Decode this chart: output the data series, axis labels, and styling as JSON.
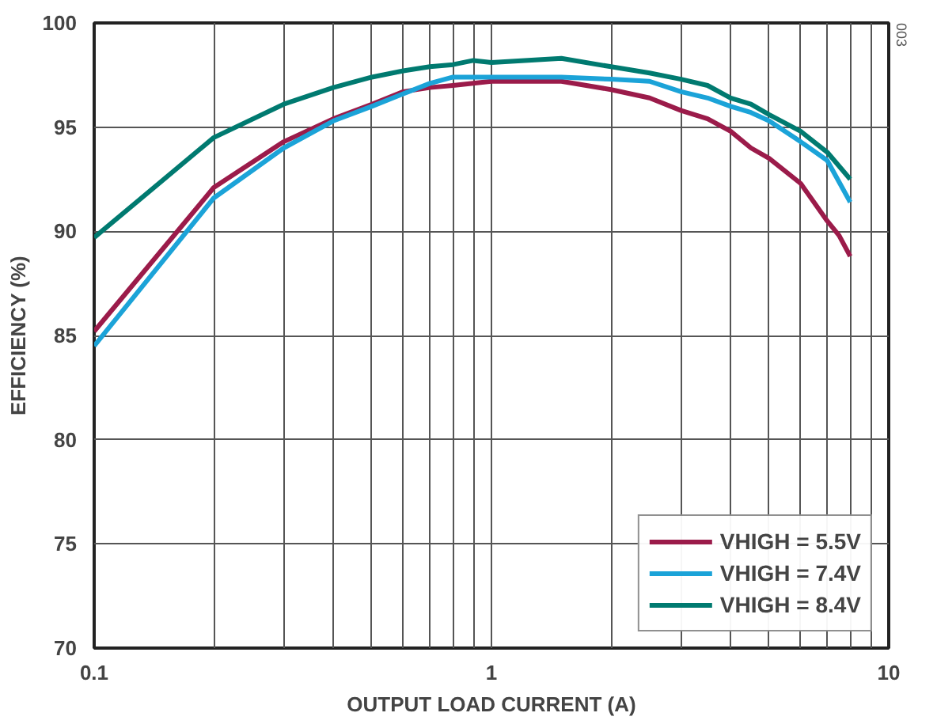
{
  "chart_data": {
    "type": "line",
    "xlabel": "OUTPUT LOAD CURRENT (A)",
    "ylabel": "EFFICIENCY (%)",
    "log": "x",
    "xlim": [
      0.1,
      10
    ],
    "ylim": [
      70,
      100
    ],
    "xticks": [
      0.1,
      {
        "value": 0.2,
        "label": null
      },
      {
        "value": 0.3,
        "label": null
      },
      {
        "value": 0.4,
        "label": null
      },
      {
        "value": 0.5,
        "label": null
      },
      {
        "value": 0.6,
        "label": null
      },
      {
        "value": 0.7,
        "label": null
      },
      {
        "value": 0.8,
        "label": null
      },
      {
        "value": 0.9,
        "label": null
      },
      1,
      {
        "value": 2,
        "label": null
      },
      {
        "value": 3,
        "label": null
      },
      {
        "value": 4,
        "label": null
      },
      {
        "value": 5,
        "label": null
      },
      {
        "value": 6,
        "label": null
      },
      {
        "value": 7,
        "label": null
      },
      {
        "value": 8,
        "label": null
      },
      {
        "value": 9,
        "label": null
      },
      10
    ],
    "yticks": [
      70,
      75,
      80,
      85,
      90,
      95,
      100
    ],
    "grid": true,
    "legend": "bottom right",
    "line_style": "solid",
    "annotations": [
      "003"
    ],
    "series": [
      {
        "name": "VHIGH = 5.5V",
        "color": "#9b1b4a",
        "x": [
          0.1,
          0.2,
          0.3,
          0.4,
          0.5,
          0.6,
          0.7,
          0.8,
          1.0,
          1.5,
          2,
          2.5,
          3,
          3.5,
          4,
          4.5,
          5,
          6,
          7,
          7.5,
          8
        ],
        "values": [
          85.2,
          92.1,
          94.3,
          95.4,
          96.1,
          96.7,
          96.9,
          97.0,
          97.2,
          97.2,
          96.8,
          96.4,
          95.8,
          95.4,
          94.8,
          94.0,
          93.5,
          92.3,
          90.5,
          89.8,
          88.8
        ]
      },
      {
        "name": "VHIGH = 7.4V",
        "color": "#1ba3d8",
        "x": [
          0.1,
          0.2,
          0.3,
          0.4,
          0.5,
          0.6,
          0.7,
          0.8,
          1.0,
          1.5,
          2,
          2.5,
          3,
          3.5,
          4,
          4.5,
          5,
          6,
          7,
          8
        ],
        "values": [
          84.5,
          91.6,
          94.0,
          95.3,
          96.0,
          96.6,
          97.1,
          97.4,
          97.4,
          97.4,
          97.3,
          97.2,
          96.7,
          96.4,
          96.0,
          95.7,
          95.3,
          94.3,
          93.4,
          91.4
        ]
      },
      {
        "name": "VHIGH = 8.4V",
        "color": "#007a70",
        "x": [
          0.1,
          0.2,
          0.3,
          0.4,
          0.5,
          0.6,
          0.7,
          0.8,
          0.9,
          1.0,
          1.5,
          2,
          2.5,
          3,
          3.5,
          4,
          4.5,
          5,
          6,
          7,
          8
        ],
        "values": [
          89.7,
          94.5,
          96.1,
          96.9,
          97.4,
          97.7,
          97.9,
          98.0,
          98.2,
          98.1,
          98.3,
          97.9,
          97.6,
          97.3,
          97.0,
          96.4,
          96.1,
          95.6,
          94.8,
          93.8,
          92.5
        ]
      }
    ]
  }
}
